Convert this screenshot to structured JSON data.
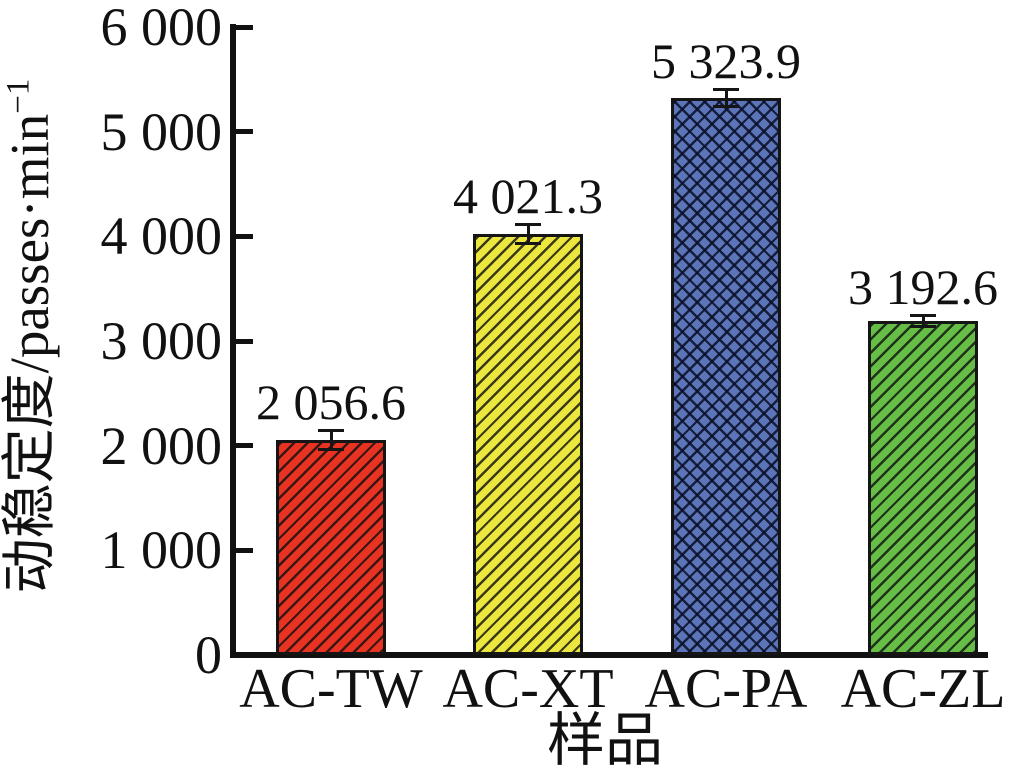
{
  "chart_data": {
    "type": "bar",
    "title": "",
    "categories": [
      "AC-TW",
      "AC-XT",
      "AC-PA",
      "AC-ZL"
    ],
    "values": [
      2056.6,
      4021.3,
      5323.9,
      3192.6
    ],
    "value_labels": [
      "2 056.6",
      "4 021.3",
      "5 323.9",
      "3 192.6"
    ],
    "errors": [
      105,
      105,
      95,
      65
    ],
    "bar_colors": [
      "#e83323",
      "#ece73e",
      "#5c75b8",
      "#66be46"
    ],
    "bar_hatches": [
      "diagonal",
      "diagonal",
      "cross",
      "diagonal"
    ],
    "hatch_line_color": "rgba(15,15,15,0.8)",
    "cross_hatch_line_color": "rgba(10,15,40,0.85)",
    "axis_color": "#111111",
    "background_color": "#ffffff",
    "xlabel": "样品",
    "ylabel_base": "动稳定度/passes·min",
    "ylabel_exponent": "−1",
    "ylim": [
      0,
      6000
    ],
    "ytick_values": [
      0,
      1000,
      2000,
      3000,
      4000,
      5000,
      6000
    ],
    "ytick_labels": [
      "0",
      "1 000",
      "2 000",
      "3 000",
      "4 000",
      "5 000",
      "6 000"
    ],
    "grid": false,
    "legend": null,
    "error_bars": true
  }
}
